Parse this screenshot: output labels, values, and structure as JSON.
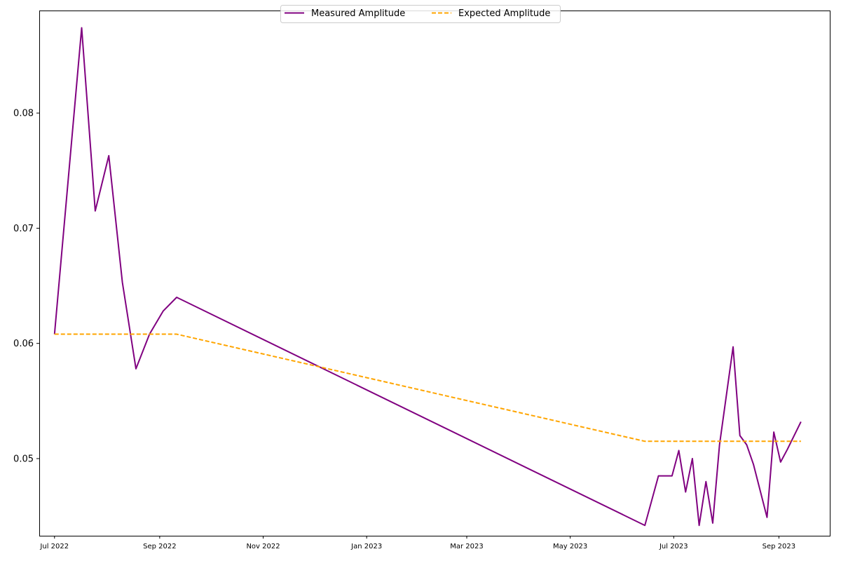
{
  "chart_data": {
    "type": "line",
    "title": "",
    "xlabel": "",
    "ylabel": "",
    "x_axis_type": "date",
    "xlim": [
      "2022-06-22",
      "2023-10-01"
    ],
    "ylim": [
      0.0433,
      0.0889
    ],
    "grid": false,
    "legend": {
      "placement": "top-center",
      "columns": 2
    },
    "x_ticks": [
      {
        "date": "2022-07-01",
        "label": "Jul 2022"
      },
      {
        "date": "2022-09-01",
        "label": "Sep 2022"
      },
      {
        "date": "2022-11-01",
        "label": "Nov 2022"
      },
      {
        "date": "2023-01-01",
        "label": "Jan 2023"
      },
      {
        "date": "2023-03-01",
        "label": "Mar 2023"
      },
      {
        "date": "2023-05-01",
        "label": "May 2023"
      },
      {
        "date": "2023-07-01",
        "label": "Jul 2023"
      },
      {
        "date": "2023-09-01",
        "label": "Sep 2023"
      }
    ],
    "y_ticks": [
      {
        "value": 0.05,
        "label": "0.05"
      },
      {
        "value": 0.06,
        "label": "0.06"
      },
      {
        "value": 0.07,
        "label": "0.07"
      },
      {
        "value": 0.08,
        "label": "0.08"
      }
    ],
    "series": [
      {
        "name": "Measured Amplitude",
        "color": "#800080",
        "style": "solid",
        "points": [
          {
            "x": "2022-07-01",
            "y": 0.0608
          },
          {
            "x": "2022-07-17",
            "y": 0.0874
          },
          {
            "x": "2022-07-25",
            "y": 0.0715
          },
          {
            "x": "2022-08-02",
            "y": 0.0763
          },
          {
            "x": "2022-08-10",
            "y": 0.0653
          },
          {
            "x": "2022-08-18",
            "y": 0.0578
          },
          {
            "x": "2022-08-26",
            "y": 0.0608
          },
          {
            "x": "2022-09-03",
            "y": 0.0628
          },
          {
            "x": "2022-09-11",
            "y": 0.064
          },
          {
            "x": "2023-06-14",
            "y": 0.0442
          },
          {
            "x": "2023-06-22",
            "y": 0.0485
          },
          {
            "x": "2023-06-30",
            "y": 0.0485
          },
          {
            "x": "2023-07-04",
            "y": 0.0507
          },
          {
            "x": "2023-07-08",
            "y": 0.0471
          },
          {
            "x": "2023-07-12",
            "y": 0.05
          },
          {
            "x": "2023-07-16",
            "y": 0.0442
          },
          {
            "x": "2023-07-20",
            "y": 0.048
          },
          {
            "x": "2023-07-24",
            "y": 0.0444
          },
          {
            "x": "2023-07-28",
            "y": 0.0512
          },
          {
            "x": "2023-08-05",
            "y": 0.0597
          },
          {
            "x": "2023-08-09",
            "y": 0.052
          },
          {
            "x": "2023-08-13",
            "y": 0.0512
          },
          {
            "x": "2023-08-17",
            "y": 0.0495
          },
          {
            "x": "2023-08-25",
            "y": 0.0449
          },
          {
            "x": "2023-08-29",
            "y": 0.0523
          },
          {
            "x": "2023-09-02",
            "y": 0.0497
          },
          {
            "x": "2023-09-06",
            "y": 0.0508
          },
          {
            "x": "2023-09-14",
            "y": 0.0532
          }
        ]
      },
      {
        "name": "Expected Amplitude",
        "color": "#FFA500",
        "style": "dashed",
        "points": [
          {
            "x": "2022-07-01",
            "y": 0.0608
          },
          {
            "x": "2022-09-11",
            "y": 0.0608
          },
          {
            "x": "2023-06-14",
            "y": 0.0515
          },
          {
            "x": "2023-09-14",
            "y": 0.0515
          }
        ]
      }
    ]
  }
}
